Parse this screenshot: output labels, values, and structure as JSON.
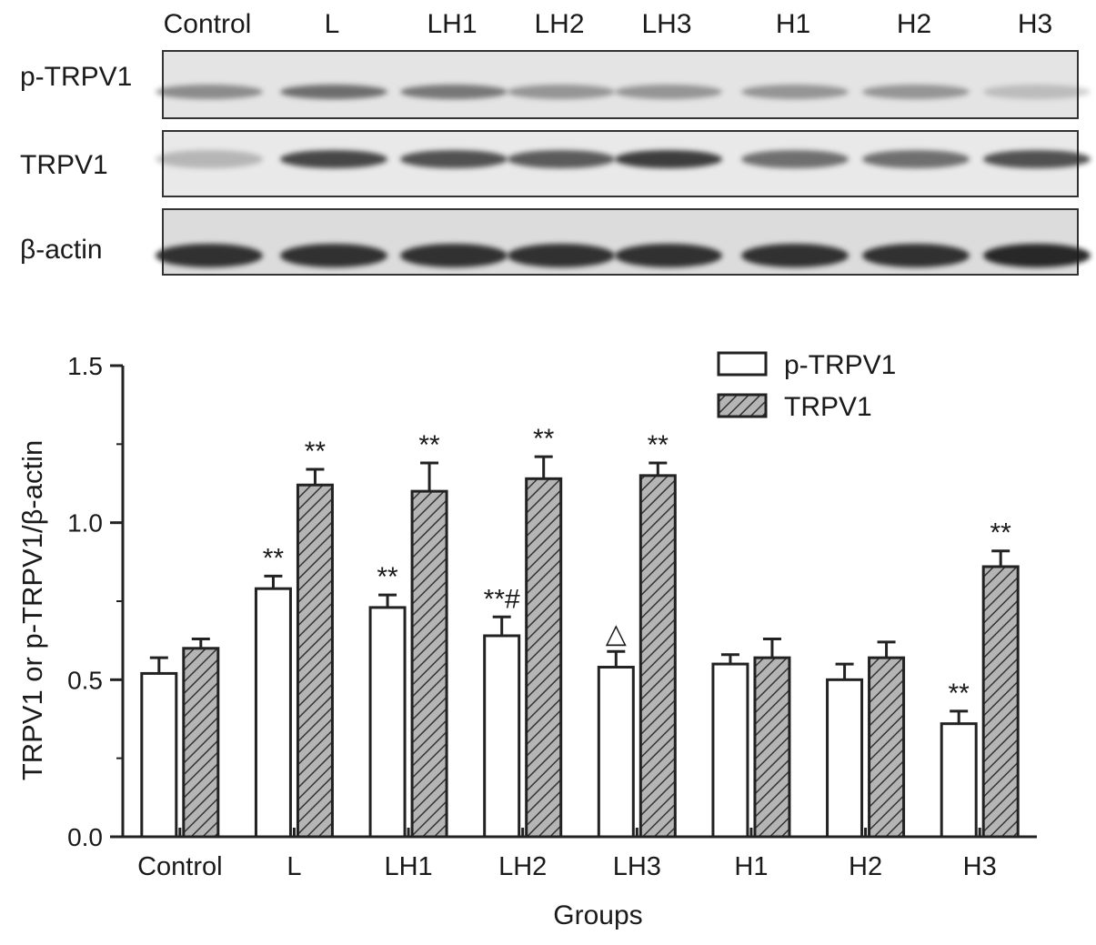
{
  "blot": {
    "lanes": [
      "Control",
      "L",
      "LH1",
      "LH2",
      "LH3",
      "H1",
      "H2",
      "H3"
    ],
    "rows": [
      "p-TRPV1",
      "TRPV1",
      "β-actin"
    ]
  },
  "chart_data": {
    "type": "bar",
    "categories": [
      "Control",
      "L",
      "LH1",
      "LH2",
      "LH3",
      "H1",
      "H2",
      "H3"
    ],
    "series": [
      {
        "name": "p-TRPV1",
        "values": [
          0.52,
          0.79,
          0.73,
          0.64,
          0.54,
          0.55,
          0.5,
          0.36
        ],
        "errors": [
          0.05,
          0.04,
          0.04,
          0.06,
          0.05,
          0.03,
          0.05,
          0.04
        ],
        "annotations": [
          "",
          "**",
          "**",
          "**#",
          "△",
          "",
          "",
          "**"
        ]
      },
      {
        "name": "TRPV1",
        "values": [
          0.6,
          1.12,
          1.1,
          1.14,
          1.15,
          0.57,
          0.57,
          0.86
        ],
        "errors": [
          0.03,
          0.05,
          0.09,
          0.07,
          0.04,
          0.06,
          0.05,
          0.05
        ],
        "annotations": [
          "",
          "**",
          "**",
          "**",
          "**",
          "",
          "",
          "**"
        ]
      }
    ],
    "xlabel": "Groups",
    "ylabel": "TRPV1 or p-TRPV1/β-actin",
    "ylim": [
      0,
      1.5
    ],
    "yticks": [
      "0.0",
      "0.5",
      "1.0",
      "1.5"
    ],
    "legend_position": "top-right",
    "colors": {
      "p-TRPV1": "#ffffff",
      "TRPV1": "#9a9a9a",
      "stroke": "#222222"
    }
  }
}
